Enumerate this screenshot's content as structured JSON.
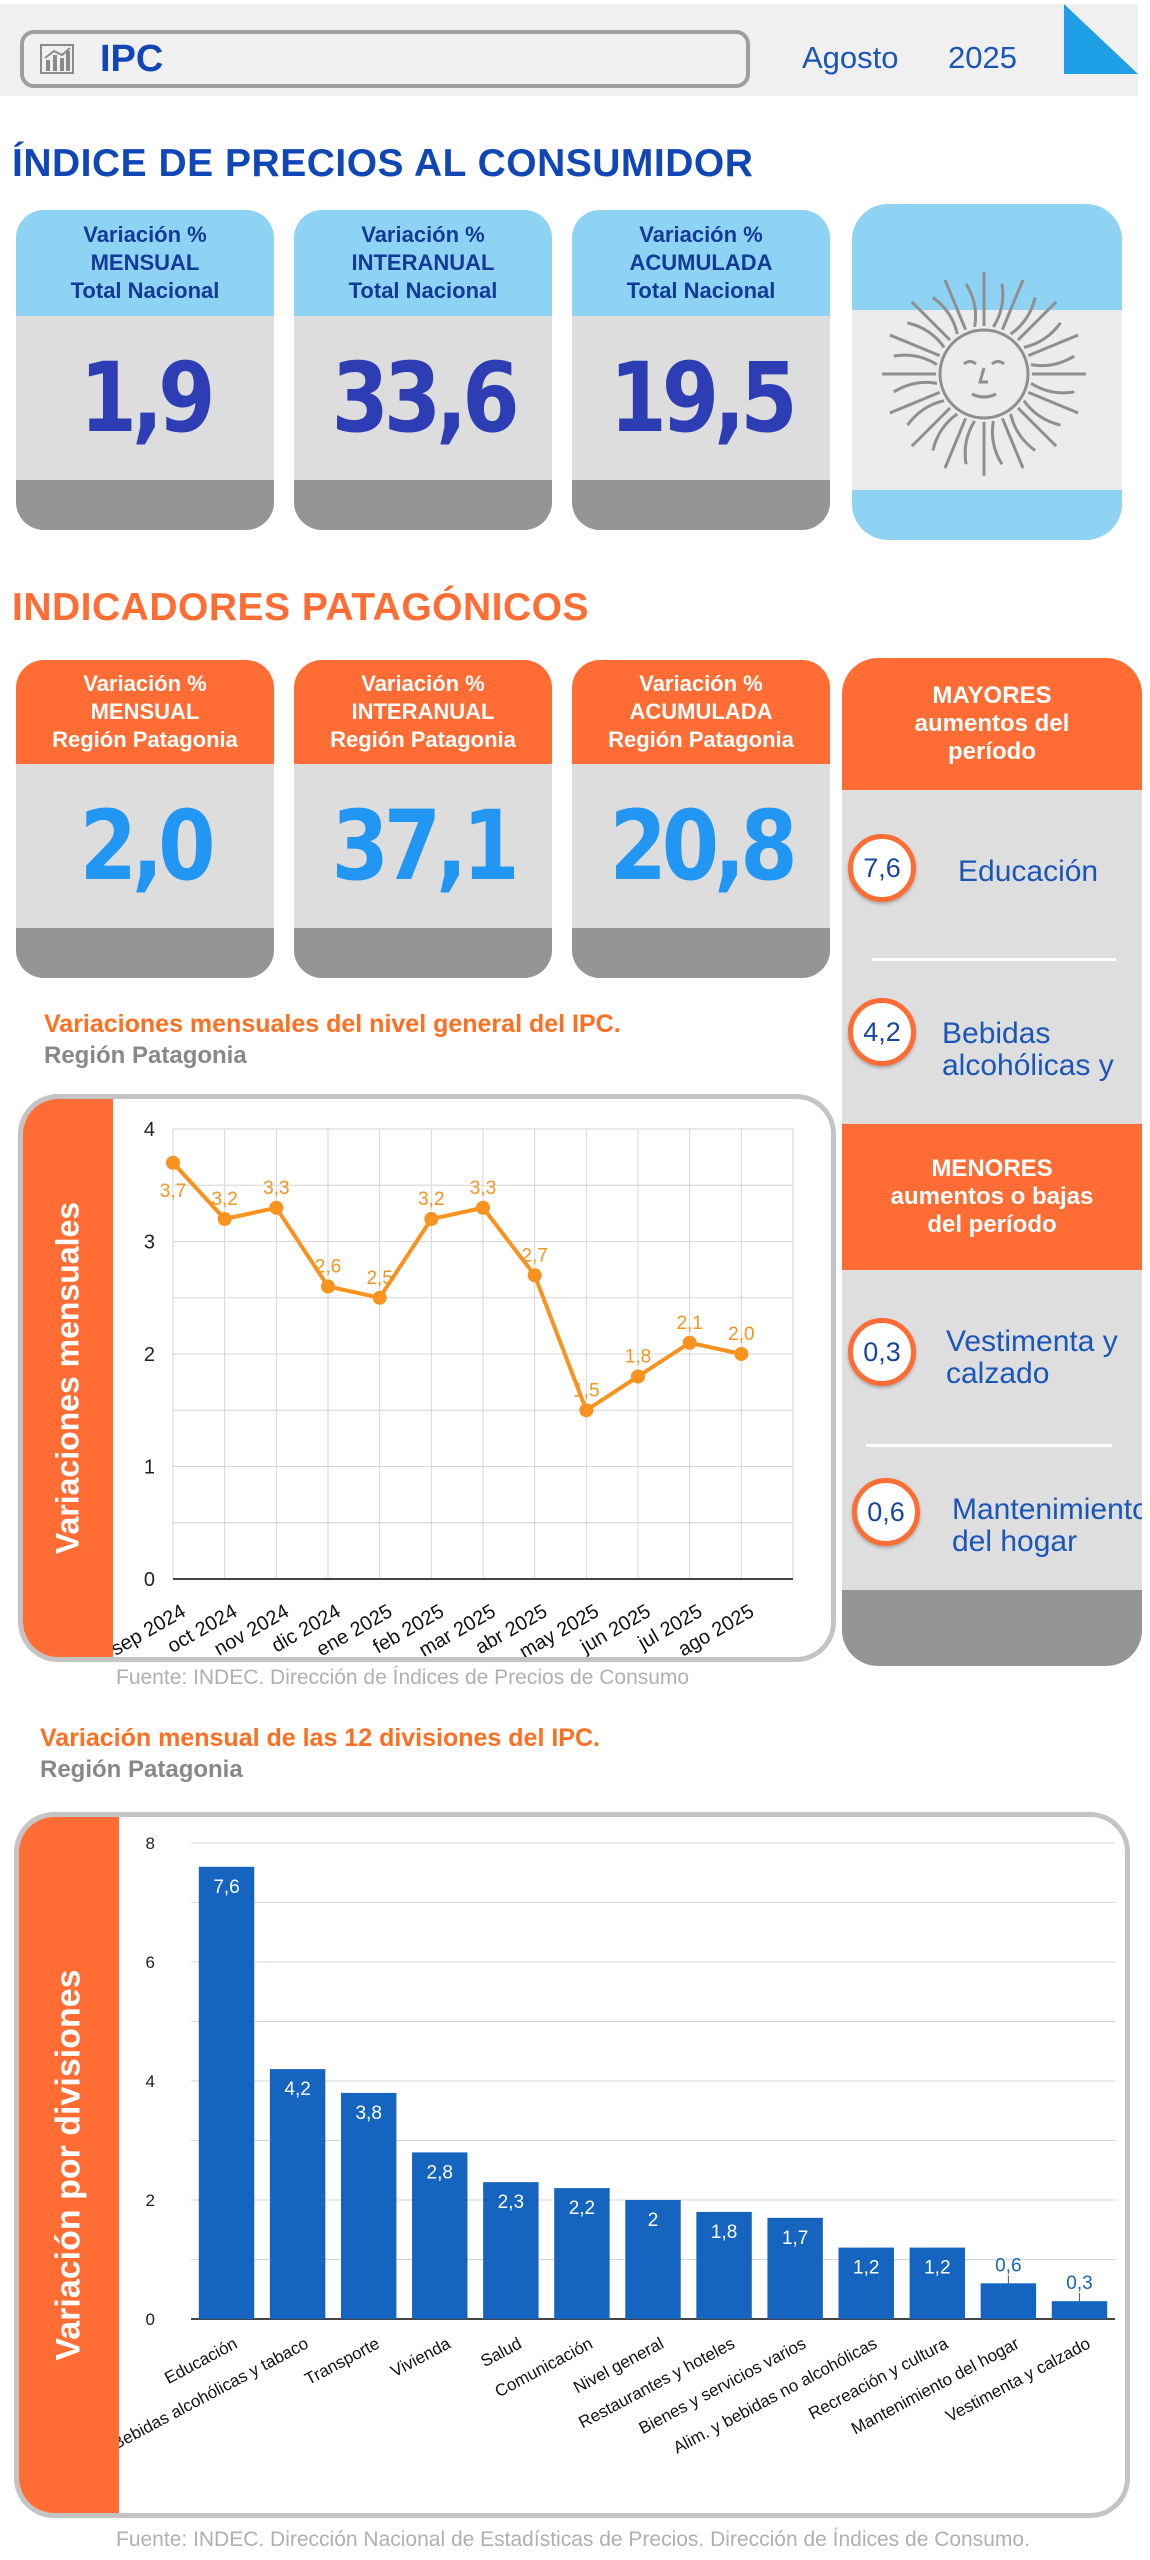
{
  "header": {
    "title": "IPC",
    "month": "Agosto",
    "year": "2025"
  },
  "national": {
    "section_title": "ÍNDICE DE PRECIOS AL CONSUMIDOR",
    "cards": [
      {
        "line1": "Variación %",
        "line2": "MENSUAL",
        "line3": "Total Nacional",
        "value": "1,9"
      },
      {
        "line1": "Variación %",
        "line2": "INTERANUAL",
        "line3": "Total Nacional",
        "value": "33,6"
      },
      {
        "line1": "Variación %",
        "line2": "ACUMULADA",
        "line3": "Total Nacional",
        "value": "19,5"
      }
    ]
  },
  "patagonia": {
    "section_title": "INDICADORES PATAGÓNICOS",
    "cards": [
      {
        "line1": "Variación %",
        "line2": "MENSUAL",
        "line3": "Región Patagonia",
        "value": "2,0"
      },
      {
        "line1": "Variación %",
        "line2": "INTERANUAL",
        "line3": "Región Patagonia",
        "value": "37,1"
      },
      {
        "line1": "Variación %",
        "line2": "ACUMULADA",
        "line3": "Región Patagonia",
        "value": "20,8"
      }
    ]
  },
  "ranking": {
    "top_header": {
      "line1": "MAYORES",
      "line2": "aumentos del",
      "line3": "período"
    },
    "top": [
      {
        "value": "7,6",
        "line1": "Educación",
        "line2": ""
      },
      {
        "value": "4,2",
        "line1": "Bebidas",
        "line2": "alcohólicas y"
      }
    ],
    "bottom_header": {
      "line1": "MENORES",
      "line2": "aumentos o bajas",
      "line3": "del período"
    },
    "bottom": [
      {
        "value": "0,3",
        "line1": "Vestimenta y",
        "line2": "calzado"
      },
      {
        "value": "0,6",
        "line1": "Mantenimiento",
        "line2": "del hogar"
      }
    ]
  },
  "line_chart_text": {
    "title": "Variaciones mensuales del nivel general del IPC.",
    "subtitle": "Región Patagonia",
    "source": "Fuente: INDEC. Dirección de Índices de Precios de Consumo"
  },
  "bar_chart_text": {
    "title": "Variación mensual de las 12 divisiones del IPC.",
    "subtitle": "Región Patagonia",
    "source": "Fuente: INDEC. Dirección Nacional de Estadísticas de Precios. Dirección de Índices de Consumo."
  },
  "chart_data": [
    {
      "type": "line",
      "title": "Variaciones mensuales del nivel general del IPC.",
      "ylabel": "Variaciones mensuales",
      "xlabel": "",
      "categories": [
        "sep 2024",
        "oct 2024",
        "nov 2024",
        "dic 2024",
        "ene 2025",
        "feb 2025",
        "mar 2025",
        "abr 2025",
        "may 2025",
        "jun 2025",
        "jul 2025",
        "ago 2025"
      ],
      "values": [
        3.7,
        3.2,
        3.3,
        2.6,
        2.5,
        3.2,
        3.3,
        2.7,
        1.5,
        1.8,
        2.1,
        2.0
      ],
      "labels": [
        "3,7",
        "3,2",
        "3,3",
        "2,6",
        "2,5",
        "3,2",
        "3,3",
        "2,7",
        "1,5",
        "1,8",
        "2,1",
        "2,0"
      ],
      "ylim": [
        0,
        4
      ],
      "yticks": [
        0,
        1,
        2,
        3,
        4
      ],
      "grid": true,
      "color": "#f7931e"
    },
    {
      "type": "bar",
      "title": "Variación mensual de las 12 divisiones del IPC.",
      "ylabel": "Variación por divisiones",
      "xlabel": "",
      "categories": [
        "Educación",
        "Bebidas alcohólicas y tabaco",
        "Transporte",
        "Vivienda",
        "Salud",
        "Comunicación",
        "Nivel general",
        "Restaurantes y hoteles",
        "Bienes y servicios varios",
        "Alim. y bebidas no alcohólicas",
        "Recreación y cultura",
        "Mantenimiento del hogar",
        "Vestimenta y calzado"
      ],
      "values": [
        7.6,
        4.2,
        3.8,
        2.8,
        2.3,
        2.2,
        2.0,
        1.8,
        1.7,
        1.2,
        1.2,
        0.6,
        0.3
      ],
      "labels": [
        "7,6",
        "4,2",
        "3,8",
        "2,8",
        "2,3",
        "2,2",
        "2",
        "1,8",
        "1,7",
        "1,2",
        "1,2",
        "0,6",
        "0,3"
      ],
      "ylim": [
        0,
        8
      ],
      "yticks": [
        0,
        2,
        4,
        6,
        8
      ],
      "grid": true,
      "color": "#1565c0"
    }
  ]
}
